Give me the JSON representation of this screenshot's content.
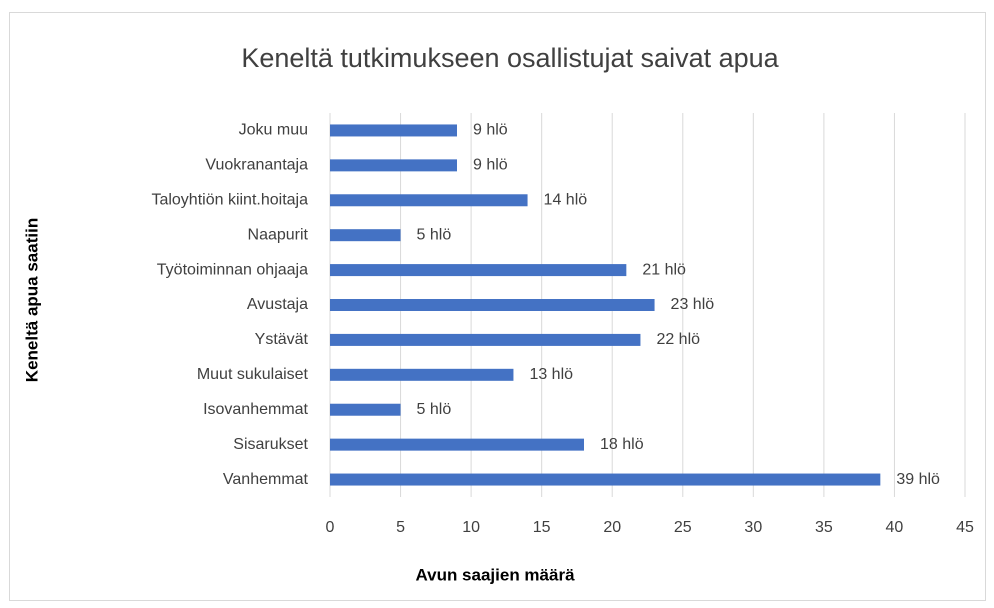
{
  "chart_data": {
    "type": "bar",
    "orientation": "horizontal",
    "title": "Keneltä tutkimukseen osallistujat saivat apua",
    "x_label": "Avun saajien määrä",
    "y_label": "Keneltä apua saatiin",
    "categories": [
      "Joku muu",
      "Vuokranantaja",
      "Taloyhtiön kiint.hoitaja",
      "Naapurit",
      "Työtoiminnan ohjaaja",
      "Avustaja",
      "Ystävät",
      "Muut sukulaiset",
      "Isovanhemmat",
      "Sisarukset",
      "Vanhemmat"
    ],
    "values": [
      9,
      9,
      14,
      5,
      21,
      23,
      22,
      13,
      5,
      18,
      39
    ],
    "value_labels": [
      "9 hlö",
      "9 hlö",
      "14 hlö",
      "5 hlö",
      "21 hlö",
      "23 hlö",
      "22 hlö",
      "13 hlö",
      "5 hlö",
      "18 hlö",
      "39 hlö"
    ],
    "color": "#4472c4",
    "xlim": [
      0,
      45
    ],
    "xticks": [
      0,
      5,
      10,
      15,
      20,
      25,
      30,
      35,
      40,
      45
    ],
    "grid": true
  }
}
